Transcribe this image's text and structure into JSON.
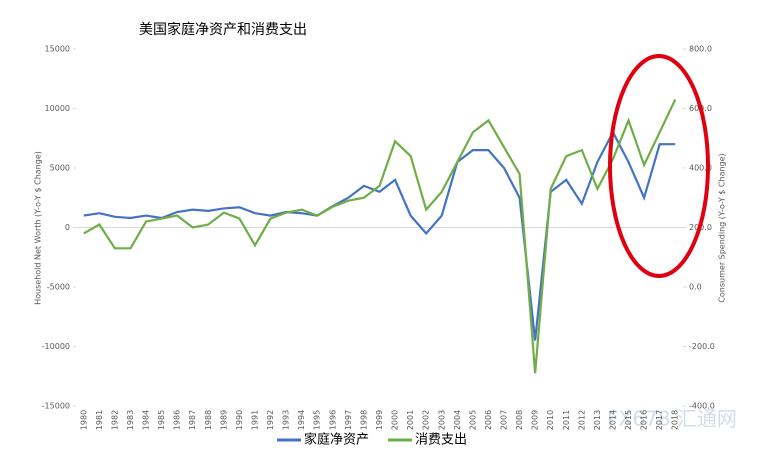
{
  "chart_data": {
    "type": "line",
    "title": "美国家庭净资产和消费支出",
    "y_label": "Household Net Worth (Y-o-Y $ Change)",
    "y2_label": "Consumer Spending (Y-o-Y $ Change)",
    "watermark": "FX678 汇通网",
    "categories": [
      "1980",
      "1981",
      "1982",
      "1983",
      "1984",
      "1985",
      "1986",
      "1987",
      "1988",
      "1989",
      "1990",
      "1991",
      "1992",
      "1993",
      "1994",
      "1995",
      "1996",
      "1997",
      "1998",
      "1999",
      "2000",
      "2001",
      "2002",
      "2003",
      "2004",
      "2005",
      "2006",
      "2007",
      "2008",
      "2009",
      "2010",
      "2011",
      "2012",
      "2013",
      "2014",
      "2015",
      "2016",
      "2017",
      "2018"
    ],
    "series": [
      {
        "name": "家庭净资产",
        "color": "#4472c4",
        "values": [
          1000,
          1200,
          900,
          800,
          1000,
          800,
          1300,
          1500,
          1400,
          1600,
          1700,
          1200,
          1000,
          1300,
          1200,
          1000,
          1800,
          2500,
          3500,
          3000,
          4000,
          1000,
          -500,
          1000,
          5500,
          6500,
          6500,
          5000,
          2500,
          -9500,
          3000,
          4000,
          2000,
          5500,
          8000,
          5500,
          2500,
          7000,
          7000
        ]
      },
      {
        "name": "消费支出",
        "color": "#70ad47",
        "axis": "y2",
        "values": [
          180,
          210,
          130,
          130,
          220,
          230,
          240,
          200,
          210,
          250,
          230,
          140,
          230,
          250,
          260,
          240,
          270,
          290,
          300,
          340,
          490,
          440,
          260,
          320,
          420,
          520,
          560,
          470,
          380,
          -290,
          330,
          440,
          460,
          330,
          430,
          560,
          410,
          520,
          630
        ]
      }
    ],
    "ylim": [
      -15000,
      15000
    ],
    "yticks": [
      -15000,
      -10000,
      -5000,
      0,
      5000,
      10000,
      15000
    ],
    "y2lim": [
      -400,
      800
    ],
    "y2ticks": [
      {
        "value": -400,
        "label": "-400.0"
      },
      {
        "value": -200,
        "label": "-200.0"
      },
      {
        "value": 0,
        "label": "0.0"
      },
      {
        "value": 200,
        "label": "200.0"
      },
      {
        "value": 400,
        "label": "400.0"
      },
      {
        "value": 600,
        "label": "600.0"
      },
      {
        "value": 800,
        "label": "800.0"
      }
    ],
    "grid": false
  }
}
